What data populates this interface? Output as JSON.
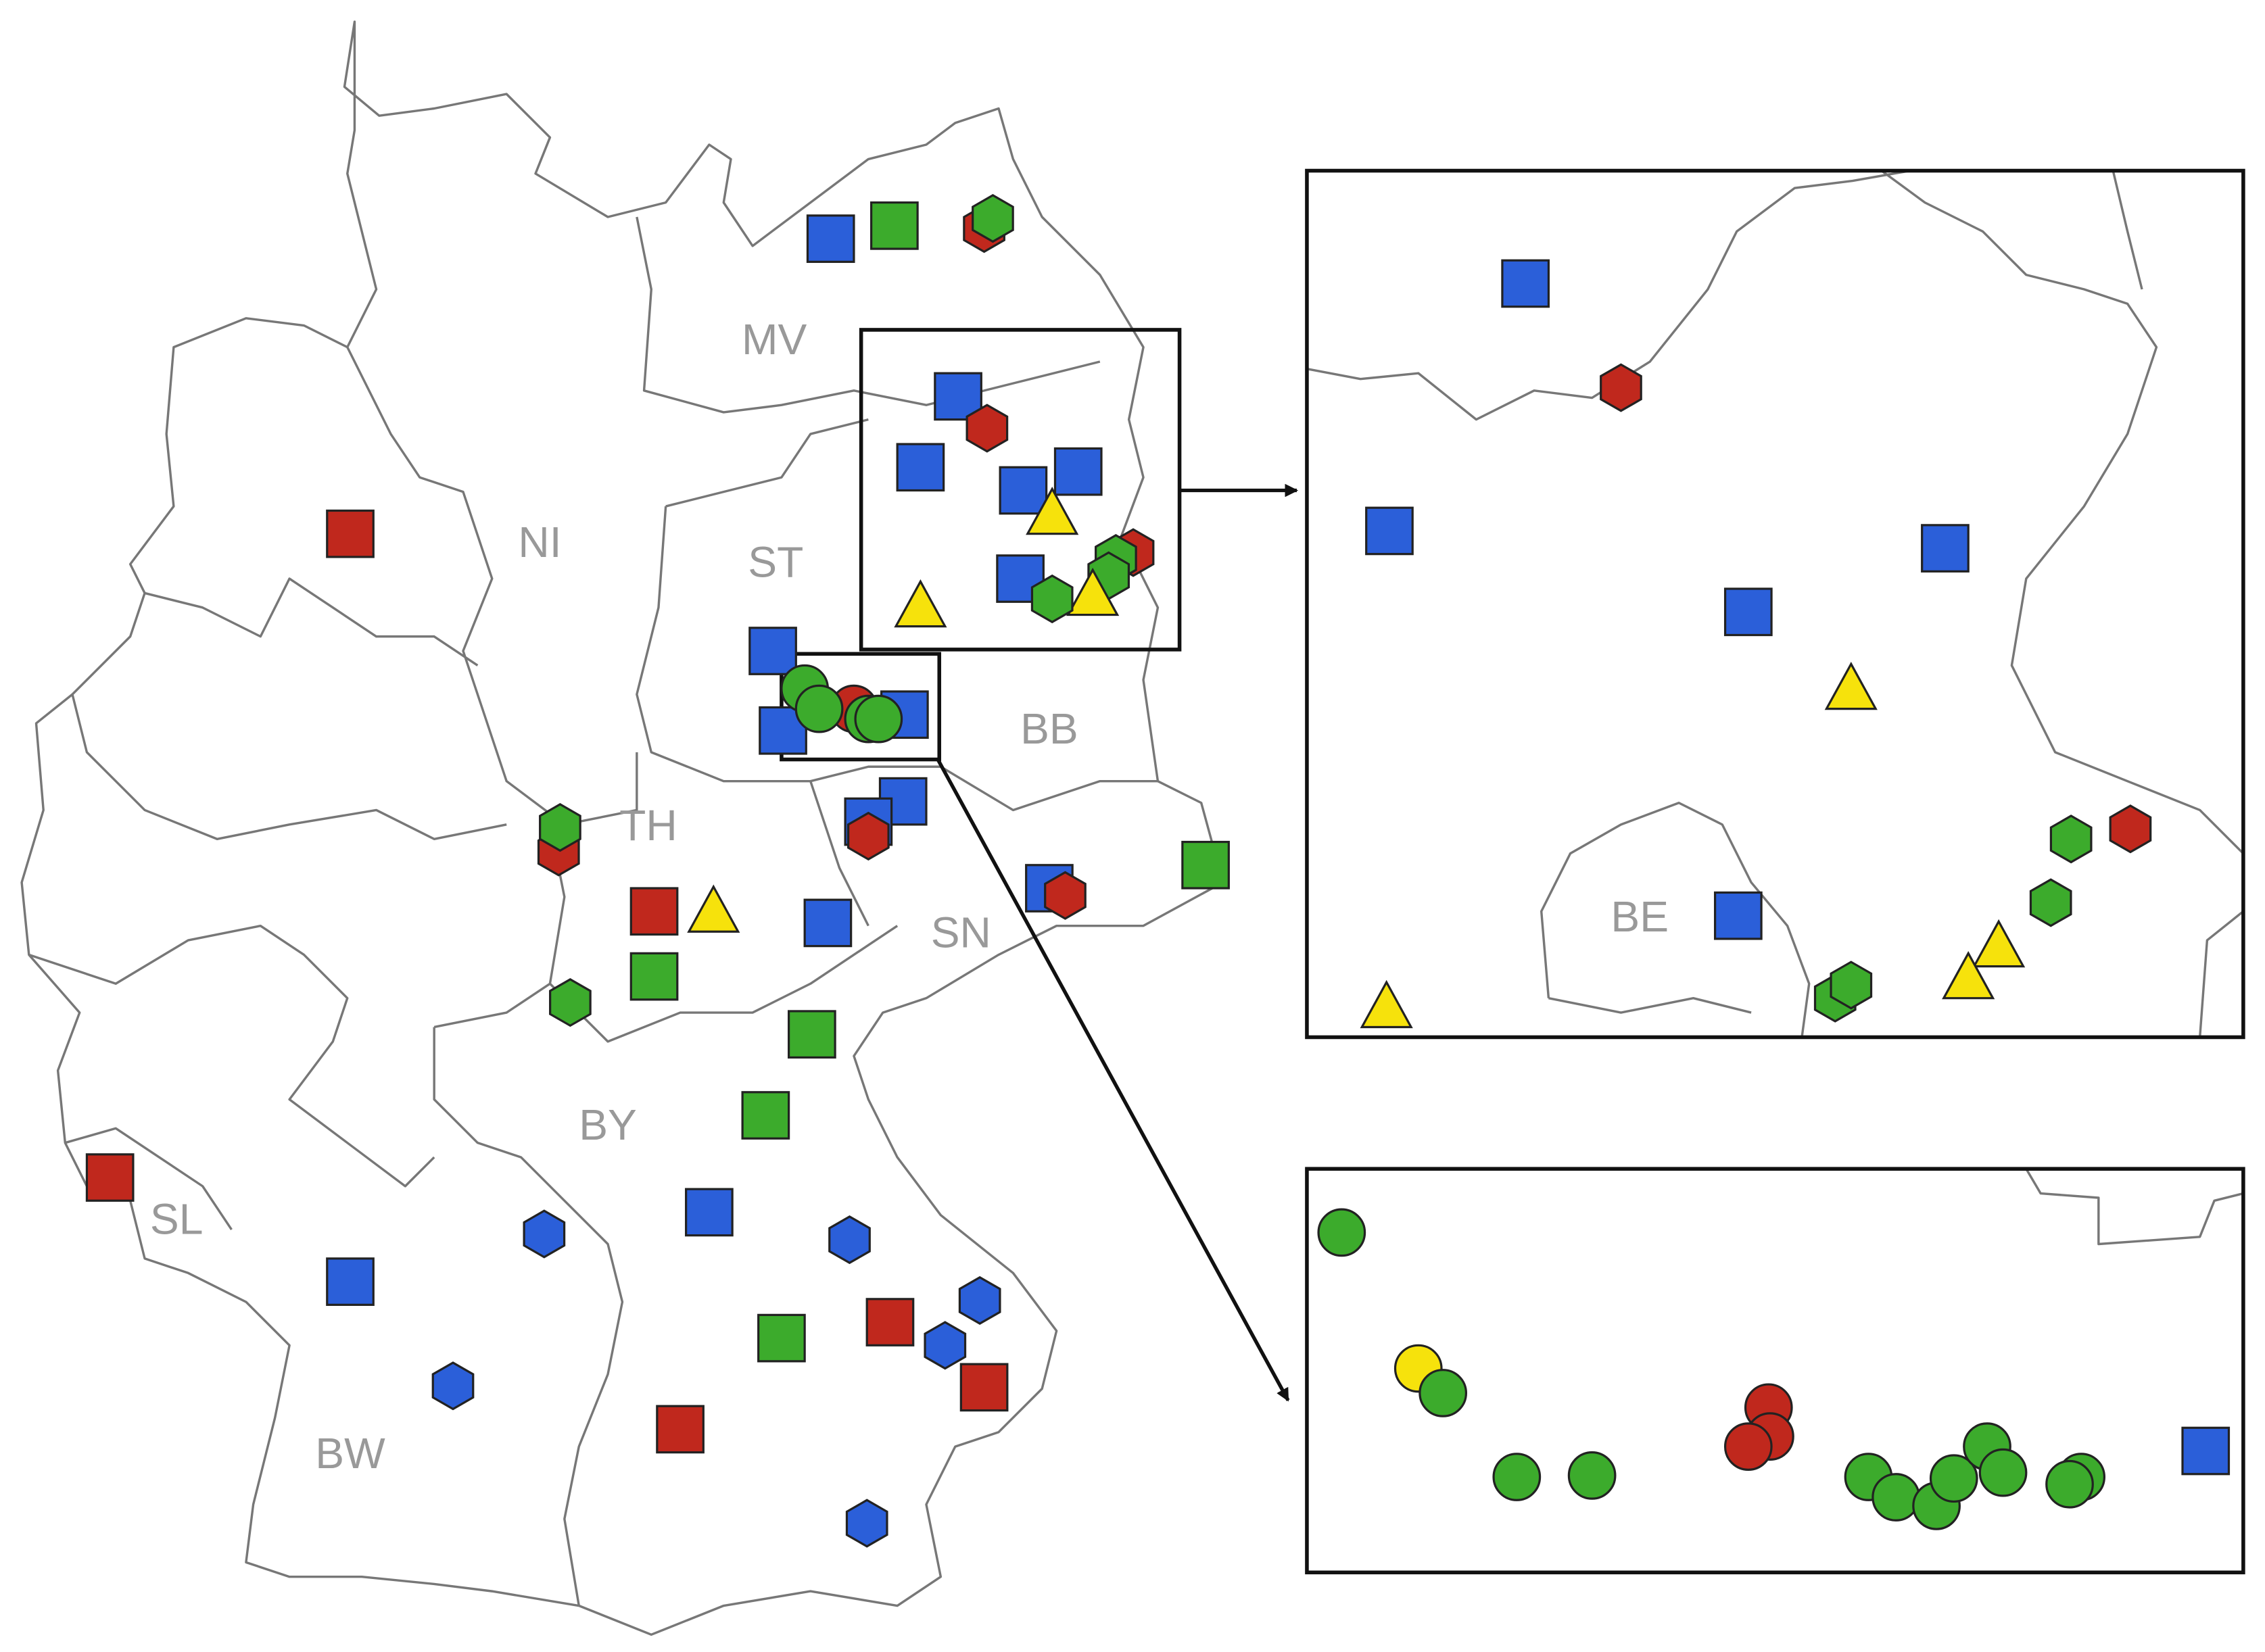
{
  "map": {
    "regions": [
      "MV",
      "NI",
      "ST",
      "BB",
      "TH",
      "SN",
      "BY",
      "SL",
      "BW"
    ],
    "inset_region": "BE"
  }
}
